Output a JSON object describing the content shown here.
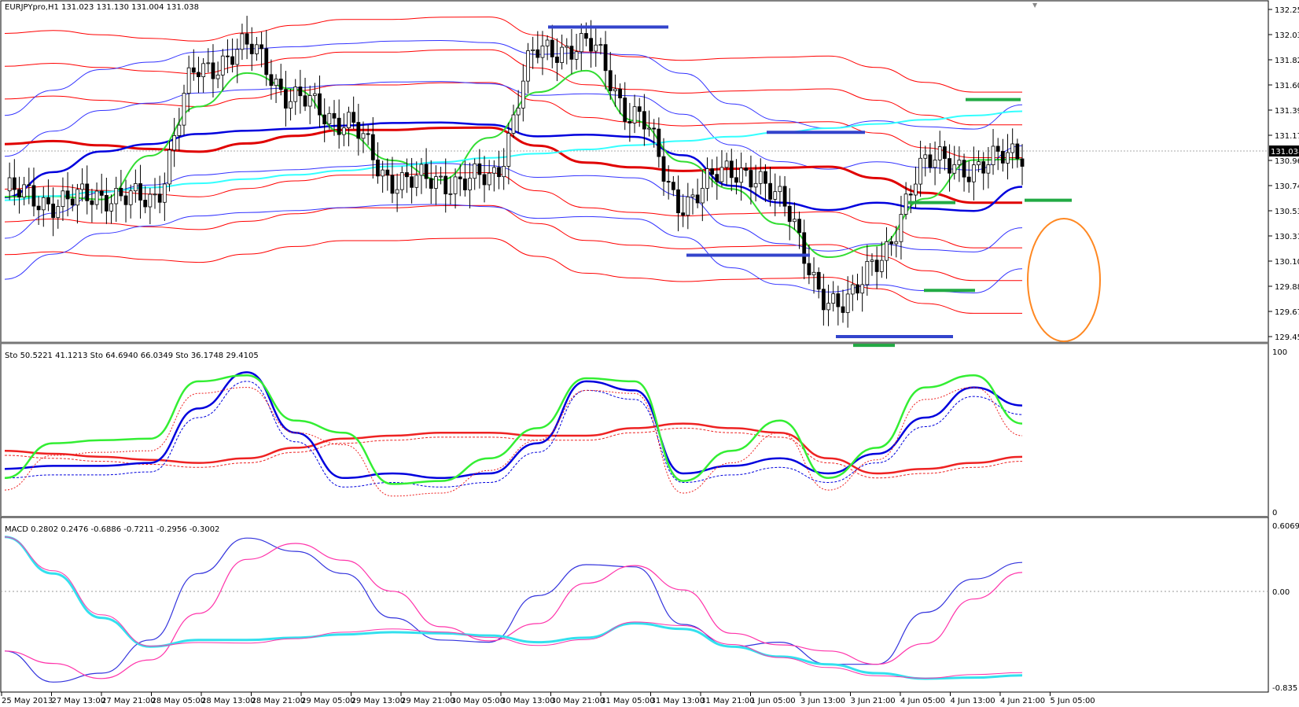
{
  "colors": {
    "axis": "#000000",
    "bull_candle": "#ffffff",
    "bear_candle": "#000000",
    "bb_outer": "#3333ff",
    "env_red": "#ff0000",
    "ma_red": "#e00000",
    "ma_blue": "#0000dd",
    "ma_green": "#33dd33",
    "ma_cyan": "#33ffff",
    "sr_blue": "#3344cc",
    "sr_green": "#22aa44",
    "circle": "#ff8822",
    "macd_main": "#3333dd",
    "macd_signal": "#ff33aa",
    "macd_extra": "#33e0ee",
    "sto_green": "#33ee33",
    "sto_blue": "#0000dd",
    "sto_red": "#ee2222"
  },
  "main_panel": {
    "header": "EURJPYpro,H1  131.023 131.130 131.004 131.038",
    "price_labels": [
      "132.250",
      "132.035",
      "131.820",
      "131.605",
      "131.390",
      "131.175",
      "130.960",
      "130.745",
      "130.530",
      "130.315",
      "130.100",
      "129.885",
      "129.670",
      "129.455"
    ],
    "current_price": "131.038"
  },
  "sto_panel": {
    "header": "Sto 50.5221 41.1213  Sto 64.6940 66.0349  Sto 36.1748 29.4105",
    "top_label": "100",
    "bottom_label": "0"
  },
  "macd_panel": {
    "header": "MACD 0.2802 0.2476 -0.6886 -0.7211 -0.2956 -0.3002",
    "top_label": "0.6069",
    "mid_label": "0.00",
    "bottom_label": "-0.835"
  },
  "time_labels": [
    "25 May 2013",
    "27 May 13:00",
    "27 May 21:00",
    "28 May 05:00",
    "28 May 13:00",
    "28 May 21:00",
    "29 May 05:00",
    "29 May 13:00",
    "29 May 21:00",
    "30 May 05:00",
    "30 May 13:00",
    "30 May 21:00",
    "31 May 05:00",
    "31 May 13:00",
    "31 May 21:00",
    "1 Jun 05:00",
    "3 Jun 13:00",
    "3 Jun 21:00",
    "4 Jun 05:00",
    "4 Jun 13:00",
    "4 Jun 21:00",
    "5 Jun 05:00"
  ],
  "chart_data": {
    "type": "candlestick",
    "symbol": "EURJPYpro",
    "timeframe": "H1",
    "ohlc_last": {
      "open": 131.023,
      "high": 131.13,
      "low": 131.004,
      "close": 131.038
    },
    "price_range": [
      129.455,
      132.25
    ],
    "series": [
      {
        "name": "price",
        "x": [
          "25 May 2013",
          "27 May 13:00",
          "27 May 21:00",
          "28 May 05:00",
          "28 May 13:00",
          "28 May 21:00",
          "29 May 05:00",
          "29 May 13:00",
          "29 May 21:00",
          "30 May 05:00",
          "30 May 13:00",
          "30 May 21:00",
          "31 May 05:00",
          "31 May 13:00",
          "31 May 21:00",
          "1 Jun 05:00",
          "3 Jun 13:00",
          "3 Jun 21:00",
          "4 Jun 05:00",
          "4 Jun 13:00",
          "4 Jun 21:00",
          "5 Jun 05:00"
        ],
        "values": [
          130.7,
          130.6,
          130.66,
          130.62,
          131.72,
          131.92,
          131.48,
          131.3,
          130.8,
          130.78,
          130.8,
          131.88,
          131.95,
          131.35,
          130.6,
          130.9,
          130.65,
          129.7,
          130.05,
          130.95,
          130.9,
          131.04
        ]
      },
      {
        "name": "sto_1_main",
        "values": [
          22,
          45,
          47,
          48,
          86,
          90,
          60,
          52,
          18,
          20,
          35,
          55,
          88,
          86,
          20,
          40,
          60,
          22,
          42,
          82,
          90,
          58
        ]
      },
      {
        "name": "sto_2_main",
        "values": [
          28,
          30,
          30,
          32,
          68,
          92,
          52,
          22,
          25,
          22,
          25,
          45,
          86,
          80,
          25,
          30,
          35,
          25,
          38,
          62,
          82,
          70
        ]
      },
      {
        "name": "sto_3_main",
        "values": [
          40,
          38,
          36,
          34,
          32,
          35,
          42,
          48,
          50,
          52,
          52,
          50,
          50,
          55,
          58,
          55,
          52,
          35,
          25,
          28,
          32,
          36
        ]
      },
      {
        "name": "macd_1",
        "values": [
          -0.5,
          -0.78,
          -0.7,
          -0.4,
          0.2,
          0.52,
          0.4,
          0.2,
          -0.2,
          -0.4,
          -0.42,
          0.0,
          0.28,
          0.26,
          -0.26,
          -0.46,
          -0.42,
          -0.62,
          -0.62,
          -0.15,
          0.15,
          0.3
        ]
      },
      {
        "name": "macd_2",
        "values": [
          0.53,
          0.2,
          -0.2,
          -0.46,
          -0.4,
          -0.4,
          -0.38,
          -0.35,
          -0.33,
          -0.34,
          -0.36,
          -0.42,
          -0.38,
          -0.25,
          -0.3,
          -0.46,
          -0.55,
          -0.62,
          -0.7,
          -0.75,
          -0.74,
          -0.72
        ]
      }
    ]
  }
}
